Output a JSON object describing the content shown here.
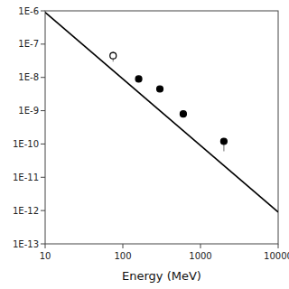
{
  "chart_data": {
    "type": "scatter",
    "xlabel": "Energy (MeV)",
    "log": true,
    "grid": false,
    "xlim": [
      10,
      10000
    ],
    "ylim": [
      1e-13,
      1e-06
    ],
    "xticks": [
      10,
      100,
      1000,
      10000
    ],
    "yticks": [
      {
        "value": 1e-13,
        "label": "1E-13"
      },
      {
        "value": 1e-12,
        "label": "1E-12"
      },
      {
        "value": 1e-11,
        "label": "1E-11"
      },
      {
        "value": 1e-10,
        "label": "1E-10"
      },
      {
        "value": 1e-09,
        "label": "1E-9"
      },
      {
        "value": 1e-08,
        "label": "1E-8"
      },
      {
        "value": 1e-07,
        "label": "1E-7"
      },
      {
        "value": 1e-06,
        "label": "1E-6"
      }
    ],
    "series": [
      {
        "type": "line",
        "color": "#000000",
        "x": [
          10,
          10000
        ],
        "values": [
          9e-07,
          9e-13
        ]
      },
      {
        "type": "scatter",
        "marker": "open_circle",
        "color": "#000000",
        "x": [
          75
        ],
        "values": [
          4.5e-08
        ],
        "error_low": [
          1.5e-08
        ],
        "error_high": [
          1.5e-08
        ]
      },
      {
        "type": "scatter",
        "marker": "circle",
        "color": "#000000",
        "x": [
          160,
          300,
          600,
          2000
        ],
        "values": [
          9e-09,
          4.5e-09,
          8e-10,
          1.2e-10
        ],
        "error_low": [
          1.5e-09,
          0,
          1.5e-10,
          6e-11
        ],
        "error_high": [
          1.5e-09,
          0,
          1.5e-10,
          3e-11
        ]
      }
    ]
  }
}
